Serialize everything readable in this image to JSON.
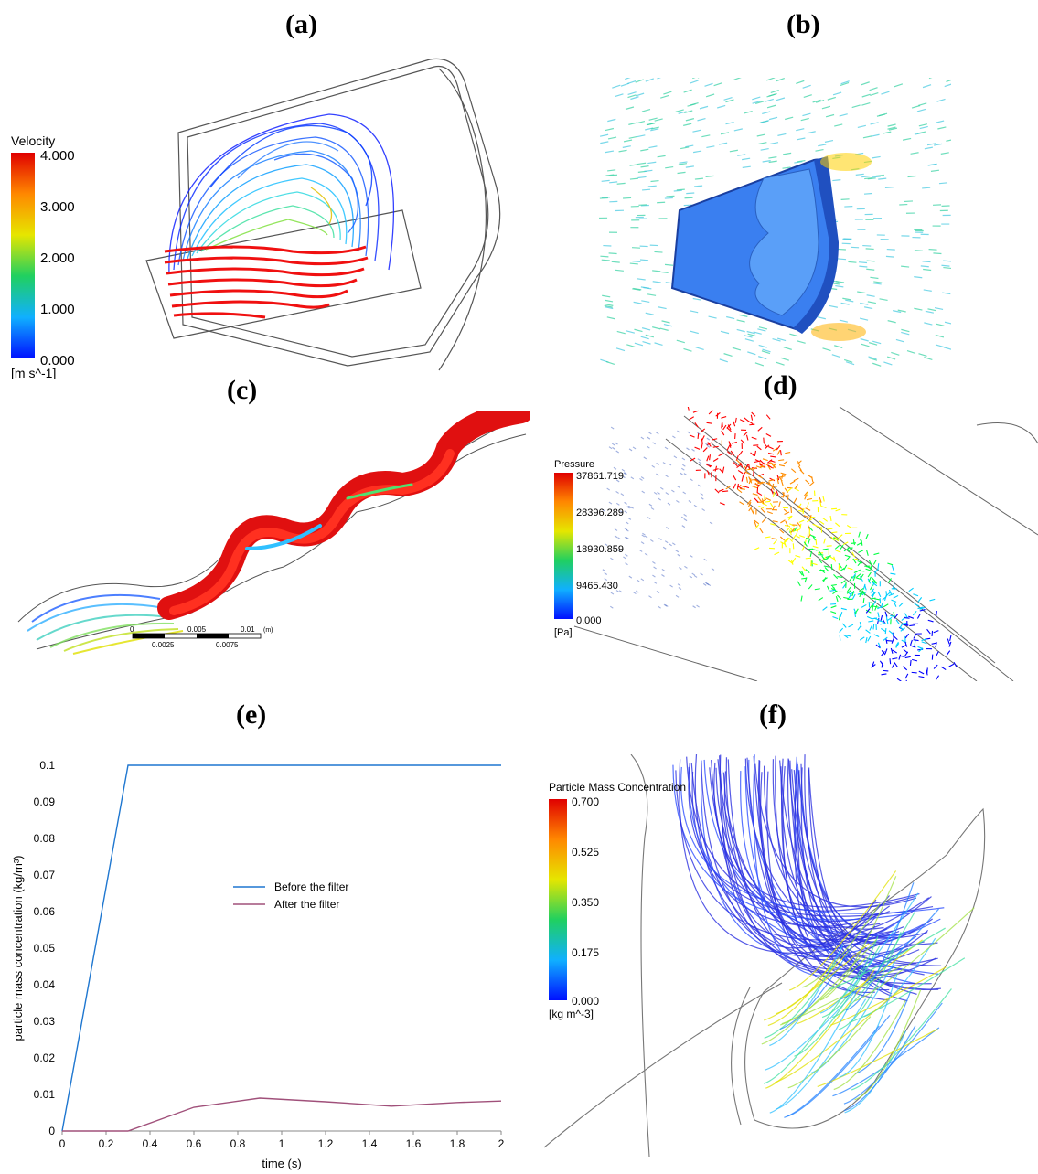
{
  "labels": {
    "a": "(a)",
    "b": "(b)",
    "c": "(c)",
    "d": "(d)",
    "e": "(e)",
    "f": "(f)"
  },
  "panel_a": {
    "colorbar": {
      "title": "Velocity",
      "unit": "[m s^-1]",
      "ticks": [
        "4.000",
        "3.000",
        "2.000",
        "1.000",
        "0.000"
      ]
    }
  },
  "panel_c": {
    "scalebar": {
      "top_ticks": [
        "0",
        "0.005",
        "0.01",
        "(m)"
      ],
      "bottom_ticks": [
        "0.0025",
        "0.0075"
      ]
    }
  },
  "panel_d": {
    "colorbar": {
      "title": "Pressure",
      "unit": "[Pa]",
      "ticks": [
        "37861.719",
        "28396.289",
        "18930.859",
        "9465.430",
        "0.000"
      ]
    }
  },
  "panel_f": {
    "colorbar": {
      "title": "Particle Mass Concentration",
      "unit": "[kg m^-3]",
      "ticks": [
        "0.700",
        "0.525",
        "0.350",
        "0.175",
        "0.000"
      ]
    }
  },
  "colors": {
    "before": "#1f77d0",
    "after": "#a0507a",
    "rainbow": [
      "#ff0000",
      "#ff8c00",
      "#ffff00",
      "#00ff40",
      "#00d0ff",
      "#0000ff"
    ]
  },
  "chart_data": {
    "type": "line",
    "xlabel": "time (s)",
    "ylabel": "particle mass concentration (kg/m³)",
    "xlim": [
      0,
      2
    ],
    "ylim": [
      0,
      0.1
    ],
    "xticks": [
      "0",
      "0.2",
      "0.4",
      "0.6",
      "0.8",
      "1",
      "1.2",
      "1.4",
      "1.6",
      "1.8",
      "2"
    ],
    "yticks": [
      "0",
      "0.01",
      "0.02",
      "0.03",
      "0.04",
      "0.05",
      "0.06",
      "0.07",
      "0.08",
      "0.09",
      "0.1"
    ],
    "legend_position": "center",
    "series": [
      {
        "name": "Before the filter",
        "x": [
          0,
          0.3,
          2
        ],
        "y": [
          0,
          0.1,
          0.1
        ]
      },
      {
        "name": "After the filter",
        "x": [
          0,
          0.3,
          0.6,
          0.9,
          1.2,
          1.5,
          1.8,
          2
        ],
        "y": [
          0,
          0,
          0.0065,
          0.009,
          0.008,
          0.0068,
          0.0078,
          0.0082
        ]
      }
    ]
  }
}
